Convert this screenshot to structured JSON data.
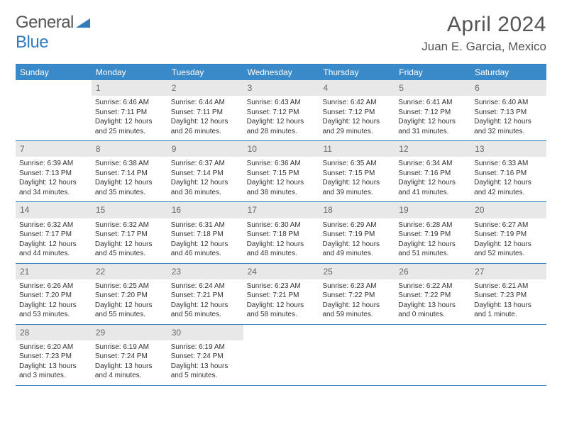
{
  "brand": {
    "part1": "General",
    "part2": "Blue"
  },
  "title": "April 2024",
  "location": "Juan E. Garcia, Mexico",
  "colors": {
    "header_bg": "#3a8ac9",
    "border": "#2f7cc0",
    "daynum_bg": "#e8e8e8",
    "text": "#333333"
  },
  "weekdays": [
    "Sunday",
    "Monday",
    "Tuesday",
    "Wednesday",
    "Thursday",
    "Friday",
    "Saturday"
  ],
  "weeks": [
    [
      {
        "blank": true
      },
      {
        "n": "1",
        "sr": "6:46 AM",
        "ss": "7:11 PM",
        "dl": "12 hours and 25 minutes."
      },
      {
        "n": "2",
        "sr": "6:44 AM",
        "ss": "7:11 PM",
        "dl": "12 hours and 26 minutes."
      },
      {
        "n": "3",
        "sr": "6:43 AM",
        "ss": "7:12 PM",
        "dl": "12 hours and 28 minutes."
      },
      {
        "n": "4",
        "sr": "6:42 AM",
        "ss": "7:12 PM",
        "dl": "12 hours and 29 minutes."
      },
      {
        "n": "5",
        "sr": "6:41 AM",
        "ss": "7:12 PM",
        "dl": "12 hours and 31 minutes."
      },
      {
        "n": "6",
        "sr": "6:40 AM",
        "ss": "7:13 PM",
        "dl": "12 hours and 32 minutes."
      }
    ],
    [
      {
        "n": "7",
        "sr": "6:39 AM",
        "ss": "7:13 PM",
        "dl": "12 hours and 34 minutes."
      },
      {
        "n": "8",
        "sr": "6:38 AM",
        "ss": "7:14 PM",
        "dl": "12 hours and 35 minutes."
      },
      {
        "n": "9",
        "sr": "6:37 AM",
        "ss": "7:14 PM",
        "dl": "12 hours and 36 minutes."
      },
      {
        "n": "10",
        "sr": "6:36 AM",
        "ss": "7:15 PM",
        "dl": "12 hours and 38 minutes."
      },
      {
        "n": "11",
        "sr": "6:35 AM",
        "ss": "7:15 PM",
        "dl": "12 hours and 39 minutes."
      },
      {
        "n": "12",
        "sr": "6:34 AM",
        "ss": "7:16 PM",
        "dl": "12 hours and 41 minutes."
      },
      {
        "n": "13",
        "sr": "6:33 AM",
        "ss": "7:16 PM",
        "dl": "12 hours and 42 minutes."
      }
    ],
    [
      {
        "n": "14",
        "sr": "6:32 AM",
        "ss": "7:17 PM",
        "dl": "12 hours and 44 minutes."
      },
      {
        "n": "15",
        "sr": "6:32 AM",
        "ss": "7:17 PM",
        "dl": "12 hours and 45 minutes."
      },
      {
        "n": "16",
        "sr": "6:31 AM",
        "ss": "7:18 PM",
        "dl": "12 hours and 46 minutes."
      },
      {
        "n": "17",
        "sr": "6:30 AM",
        "ss": "7:18 PM",
        "dl": "12 hours and 48 minutes."
      },
      {
        "n": "18",
        "sr": "6:29 AM",
        "ss": "7:19 PM",
        "dl": "12 hours and 49 minutes."
      },
      {
        "n": "19",
        "sr": "6:28 AM",
        "ss": "7:19 PM",
        "dl": "12 hours and 51 minutes."
      },
      {
        "n": "20",
        "sr": "6:27 AM",
        "ss": "7:19 PM",
        "dl": "12 hours and 52 minutes."
      }
    ],
    [
      {
        "n": "21",
        "sr": "6:26 AM",
        "ss": "7:20 PM",
        "dl": "12 hours and 53 minutes."
      },
      {
        "n": "22",
        "sr": "6:25 AM",
        "ss": "7:20 PM",
        "dl": "12 hours and 55 minutes."
      },
      {
        "n": "23",
        "sr": "6:24 AM",
        "ss": "7:21 PM",
        "dl": "12 hours and 56 minutes."
      },
      {
        "n": "24",
        "sr": "6:23 AM",
        "ss": "7:21 PM",
        "dl": "12 hours and 58 minutes."
      },
      {
        "n": "25",
        "sr": "6:23 AM",
        "ss": "7:22 PM",
        "dl": "12 hours and 59 minutes."
      },
      {
        "n": "26",
        "sr": "6:22 AM",
        "ss": "7:22 PM",
        "dl": "13 hours and 0 minutes."
      },
      {
        "n": "27",
        "sr": "6:21 AM",
        "ss": "7:23 PM",
        "dl": "13 hours and 1 minute."
      }
    ],
    [
      {
        "n": "28",
        "sr": "6:20 AM",
        "ss": "7:23 PM",
        "dl": "13 hours and 3 minutes."
      },
      {
        "n": "29",
        "sr": "6:19 AM",
        "ss": "7:24 PM",
        "dl": "13 hours and 4 minutes."
      },
      {
        "n": "30",
        "sr": "6:19 AM",
        "ss": "7:24 PM",
        "dl": "13 hours and 5 minutes."
      },
      {
        "blank": true
      },
      {
        "blank": true
      },
      {
        "blank": true
      },
      {
        "blank": true
      }
    ]
  ],
  "labels": {
    "sunrise": "Sunrise: ",
    "sunset": "Sunset: ",
    "daylight": "Daylight: "
  }
}
